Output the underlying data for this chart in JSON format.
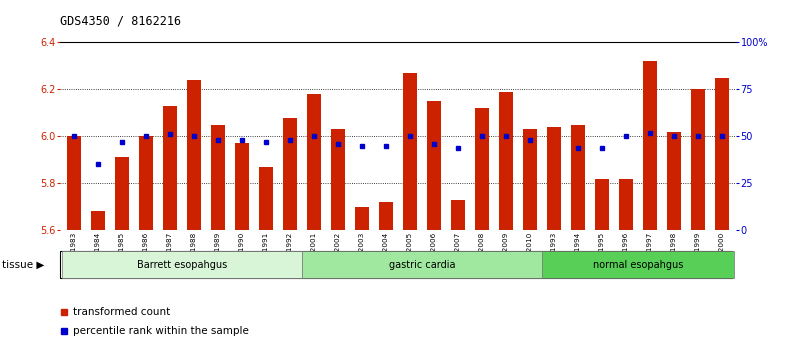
{
  "title": "GDS4350 / 8162216",
  "samples": [
    "GSM851983",
    "GSM851984",
    "GSM851985",
    "GSM851986",
    "GSM851987",
    "GSM851988",
    "GSM851989",
    "GSM851990",
    "GSM851991",
    "GSM851992",
    "GSM852001",
    "GSM852002",
    "GSM852003",
    "GSM852004",
    "GSM852005",
    "GSM852006",
    "GSM852007",
    "GSM852008",
    "GSM852009",
    "GSM852010",
    "GSM851993",
    "GSM851994",
    "GSM851995",
    "GSM851996",
    "GSM851997",
    "GSM851998",
    "GSM851999",
    "GSM852000"
  ],
  "transformed_counts": [
    6.0,
    5.68,
    5.91,
    6.0,
    6.13,
    6.24,
    6.05,
    5.97,
    5.87,
    6.08,
    6.18,
    6.03,
    5.7,
    5.72,
    6.27,
    6.15,
    5.73,
    6.12,
    6.19,
    6.03,
    6.04,
    6.05,
    5.82,
    5.82,
    6.32,
    6.02,
    6.2,
    6.25
  ],
  "percentile_ranks": [
    50,
    35,
    47,
    50,
    51,
    50,
    48,
    48,
    47,
    48,
    50,
    46,
    45,
    45,
    50,
    46,
    44,
    50,
    50,
    48,
    null,
    44,
    44,
    50,
    52,
    50,
    50,
    50
  ],
  "tissue_colors": {
    "Barrett esopahgus": "#d8f5d8",
    "gastric cardia": "#a0e8a0",
    "normal esopahgus": "#58d058"
  },
  "tissue_groups": [
    [
      "Barrett esopahgus",
      0,
      9
    ],
    [
      "gastric cardia",
      10,
      19
    ],
    [
      "normal esopahgus",
      20,
      27
    ]
  ],
  "ylim_left": [
    5.6,
    6.4
  ],
  "ylim_right": [
    0,
    100
  ],
  "yticks_left": [
    5.6,
    5.8,
    6.0,
    6.2,
    6.4
  ],
  "yticks_right": [
    0,
    25,
    50,
    75,
    100
  ],
  "ytick_labels_right": [
    "0",
    "25",
    "50",
    "75",
    "100%"
  ],
  "bar_color": "#cc2200",
  "percentile_color": "#0000cc",
  "bar_width": 0.55,
  "gridline_y": [
    5.8,
    6.0,
    6.2
  ],
  "ylabel_left_color": "#cc2200",
  "ylabel_right_color": "#0000cc"
}
